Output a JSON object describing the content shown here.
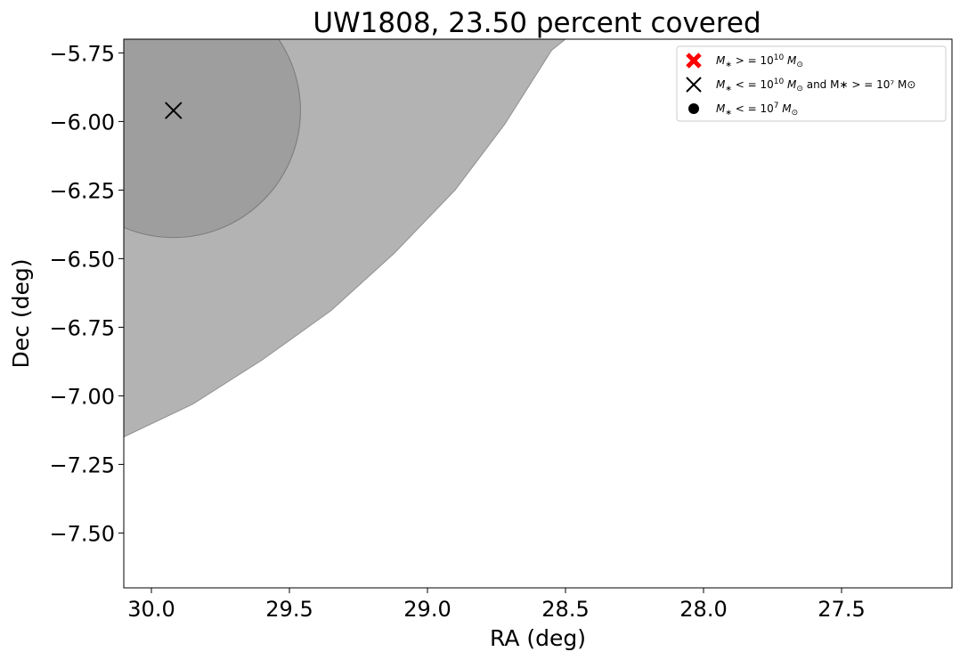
{
  "chart_data": {
    "type": "scatter",
    "title": "UW1808, 23.50 percent covered",
    "xlabel": "RA (deg)",
    "ylabel": "Dec (deg)",
    "xlim": [
      30.1,
      27.1
    ],
    "ylim": [
      -7.7,
      -5.7
    ],
    "x_ticks": [
      30.0,
      29.5,
      29.0,
      28.5,
      28.0,
      27.5
    ],
    "y_ticks": [
      -5.75,
      -6.0,
      -6.25,
      -6.5,
      -6.75,
      -7.0,
      -7.25,
      -7.5
    ],
    "x_tick_labels": [
      "30.0",
      "29.5",
      "29.0",
      "28.5",
      "28.0",
      "27.5"
    ],
    "y_tick_labels": [
      "−5.75",
      "−6.00",
      "−6.25",
      "−6.50",
      "−6.75",
      "−7.00",
      "−7.25",
      "−7.50"
    ],
    "grid": false,
    "legend_position": "top-right",
    "legend": [
      {
        "marker": "red-x",
        "label": "M∗ > = 10^10 M⊙",
        "main": "M",
        "sub": "∗",
        "op": " > = 10",
        "sup": "10",
        "tail_main": " M",
        "tail_sub": "⊙",
        "extra": ""
      },
      {
        "marker": "black-x",
        "label": "M∗ < = 10^10 M⊙ and M∗ > = 10^7 M⊙",
        "main": "M",
        "sub": "∗",
        "op": " < = 10",
        "sup": "10",
        "tail_main": " M",
        "tail_sub": "⊙",
        "extra": "  and  M∗ > = 10⁷ M⊙"
      },
      {
        "marker": "black-dot",
        "label": "M∗ < = 10^7 M⊙",
        "main": "M",
        "sub": "∗",
        "op": " < = 10",
        "sup": "7",
        "tail_main": " M",
        "tail_sub": "⊙",
        "extra": ""
      }
    ],
    "coverage_region": {
      "color": "#b3b3b3",
      "boundary": [
        [
          30.1,
          -7.15
        ],
        [
          29.85,
          -7.03
        ],
        [
          29.6,
          -6.87
        ],
        [
          29.35,
          -6.69
        ],
        [
          29.12,
          -6.48
        ],
        [
          28.9,
          -6.25
        ],
        [
          28.72,
          -6.01
        ],
        [
          28.55,
          -5.74
        ],
        [
          28.5,
          -5.7
        ]
      ]
    },
    "circle": {
      "ra": 29.92,
      "dec": -5.96,
      "radius_deg": 0.46,
      "color": "#8c8c8c"
    },
    "points": [
      {
        "ra": 29.92,
        "dec": -5.96,
        "class": "black-x"
      }
    ],
    "colors": {
      "red": "#ff0000",
      "black": "#000000"
    }
  }
}
